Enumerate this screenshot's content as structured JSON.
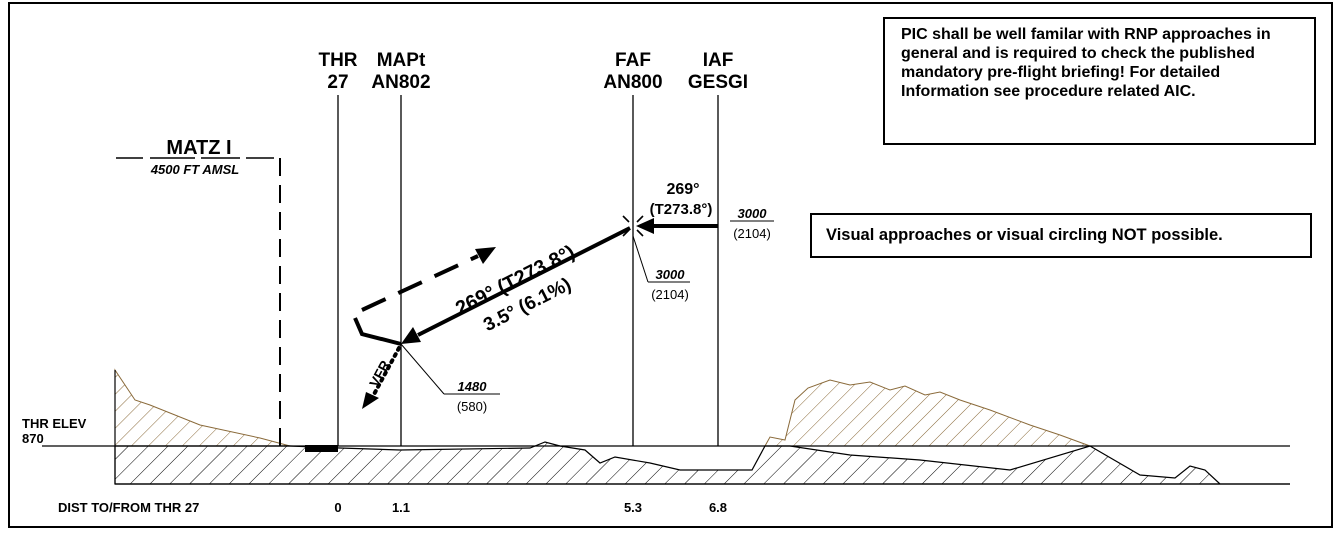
{
  "fixes": {
    "thr": {
      "line1": "THR",
      "line2": "27"
    },
    "mapt": {
      "line1": "MAPt",
      "line2": "AN802"
    },
    "faf": {
      "line1": "FAF",
      "line2": "AN800"
    },
    "iaf": {
      "line1": "IAF",
      "line2": "GESGI"
    }
  },
  "matz": {
    "label": "MATZ I",
    "altitude": "4500 FT AMSL"
  },
  "segments": {
    "initial": {
      "track": "269°",
      "true_track": "(T273.8°)"
    },
    "final": {
      "track": "269° (T273.8°)",
      "slope": "3.5° (6.1%)"
    }
  },
  "altitudes": {
    "iaf": {
      "alt": "3000",
      "height": "(2104)"
    },
    "faf": {
      "alt": "3000",
      "height": "(2104)"
    },
    "mapt": {
      "alt": "1480",
      "height": "(580)"
    }
  },
  "vfr_label": "VFR",
  "thr_elev": {
    "label": "THR ELEV",
    "value": "870"
  },
  "distance": {
    "label": "DIST TO/FROM THR 27",
    "ticks": [
      "0",
      "1.1",
      "5.3",
      "6.8"
    ]
  },
  "notes": {
    "rnp": "PIC shall be well familar with RNP approaches in general and is required to check the published mandatory pre-flight briefing! For detailed Information see procedure related AIC.",
    "visual": "Visual approaches or visual circling NOT possible."
  },
  "colors": {
    "terrain_hatch": "#000000",
    "obstacle_hatch": "#8a6a3a"
  }
}
